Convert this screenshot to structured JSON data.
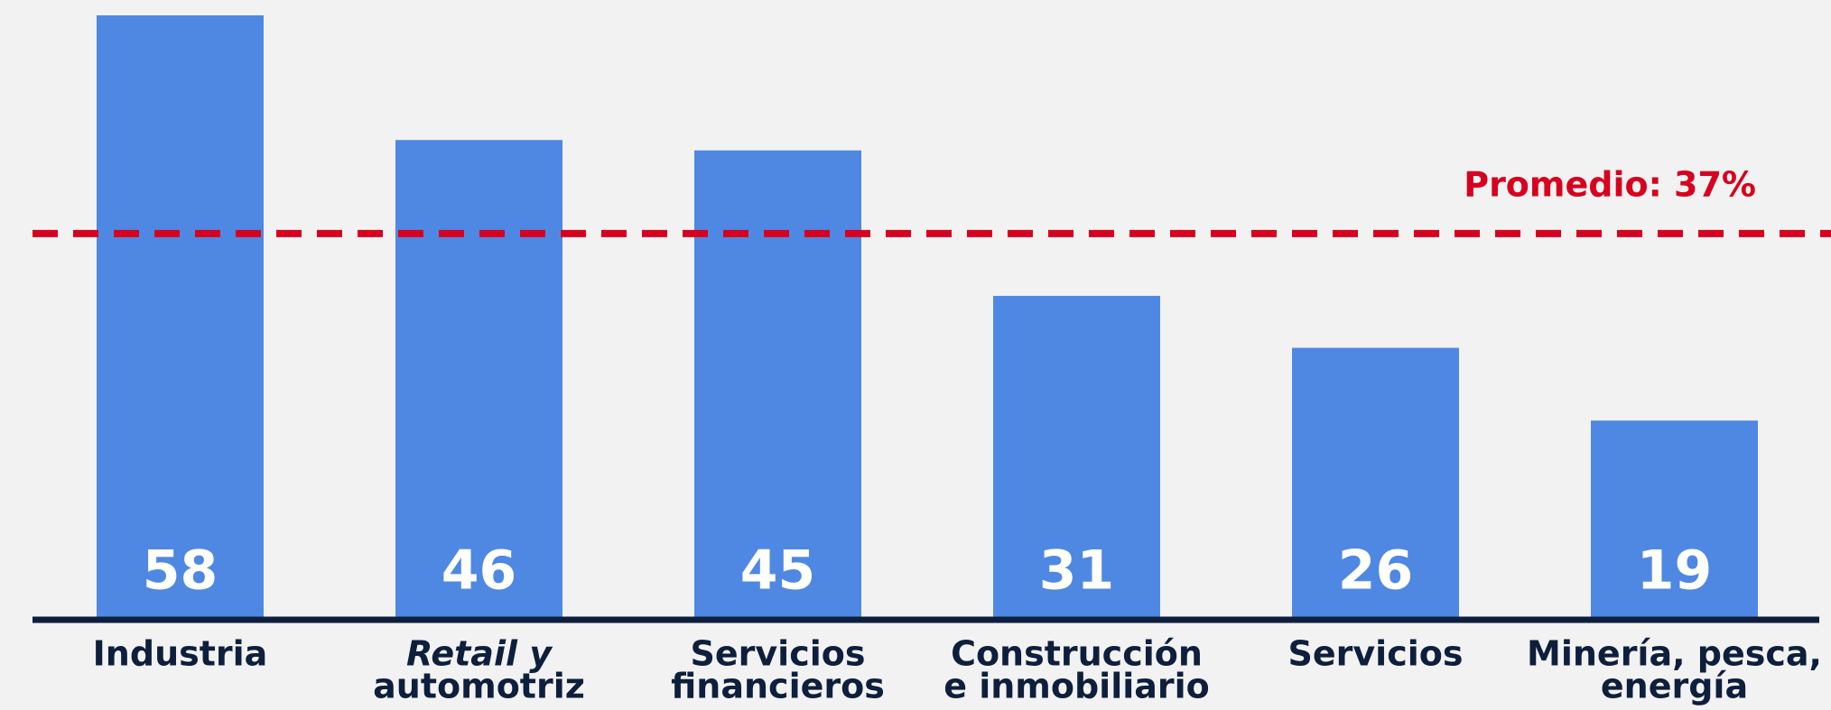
{
  "chart_data": {
    "type": "bar",
    "categories": [
      [
        "Industria"
      ],
      [
        "Retail y",
        "automotriz"
      ],
      [
        "Servicios",
        "financieros"
      ],
      [
        "Construcción",
        "e inmobiliario"
      ],
      [
        "Servicios"
      ],
      [
        "Minería, pesca,",
        "energía"
      ]
    ],
    "values": [
      58,
      46,
      45,
      31,
      26,
      19
    ],
    "color": "#4f88e3",
    "average": {
      "value": 37,
      "label": "Promedio: 37%",
      "color": "#d7001f"
    }
  }
}
